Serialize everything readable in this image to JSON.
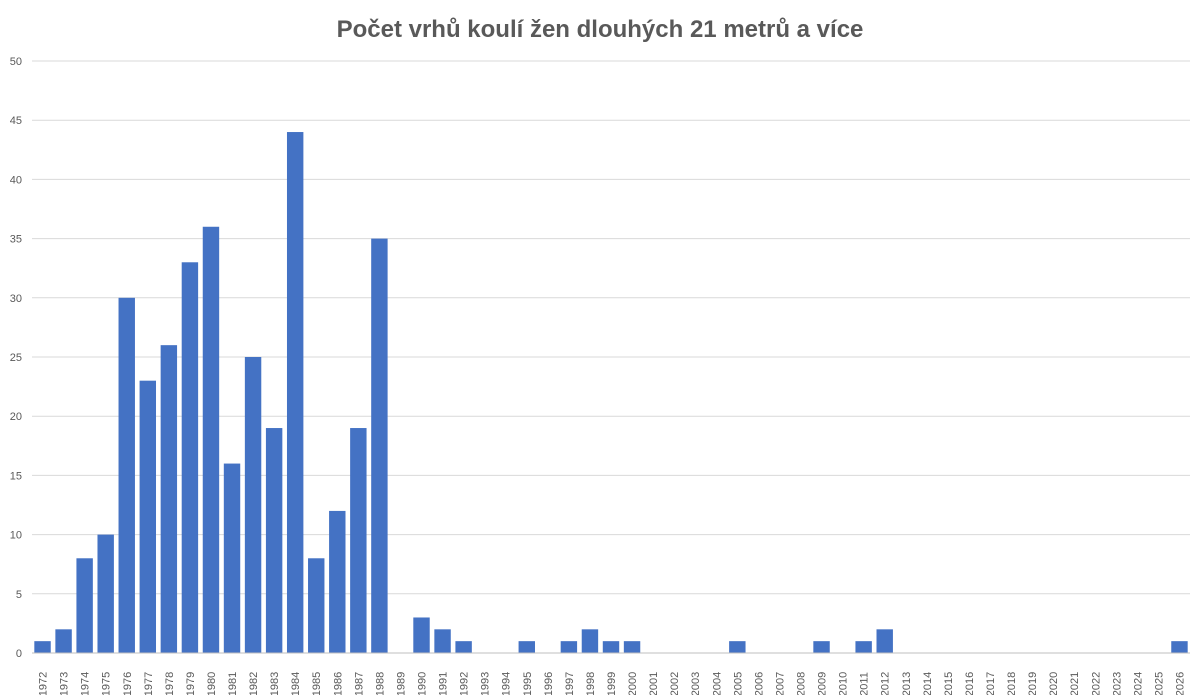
{
  "chart_data": {
    "type": "bar",
    "title": "Počet vrhů koulí žen dlouhých 21 metrů a více",
    "xlabel": "",
    "ylabel": "",
    "ylim": [
      0,
      50
    ],
    "yticks": [
      0,
      5,
      10,
      15,
      20,
      25,
      30,
      35,
      40,
      45,
      50
    ],
    "grid": true,
    "legend": "none",
    "bar_color": "#4472c4",
    "categories": [
      "1972",
      "1973",
      "1974",
      "1975",
      "1976",
      "1977",
      "1978",
      "1979",
      "1980",
      "1981",
      "1982",
      "1983",
      "1984",
      "1985",
      "1986",
      "1987",
      "1988",
      "1989",
      "1990",
      "1991",
      "1992",
      "1993",
      "1994",
      "1995",
      "1996",
      "1997",
      "1998",
      "1999",
      "2000",
      "2001",
      "2002",
      "2003",
      "2004",
      "2005",
      "2006",
      "2007",
      "2008",
      "2009",
      "2010",
      "2011",
      "2012",
      "2013",
      "2014",
      "2015",
      "2016",
      "2017",
      "2018",
      "2019",
      "2020",
      "2021",
      "2022",
      "2023",
      "2024",
      "2025",
      "2026"
    ],
    "values": [
      1,
      2,
      8,
      10,
      30,
      23,
      26,
      33,
      36,
      16,
      25,
      19,
      44,
      8,
      12,
      19,
      35,
      0,
      3,
      2,
      1,
      0,
      0,
      1,
      0,
      1,
      2,
      1,
      1,
      0,
      0,
      0,
      0,
      1,
      0,
      0,
      0,
      1,
      0,
      1,
      2,
      0,
      0,
      0,
      0,
      0,
      0,
      0,
      0,
      0,
      0,
      0,
      0,
      0,
      1
    ]
  }
}
